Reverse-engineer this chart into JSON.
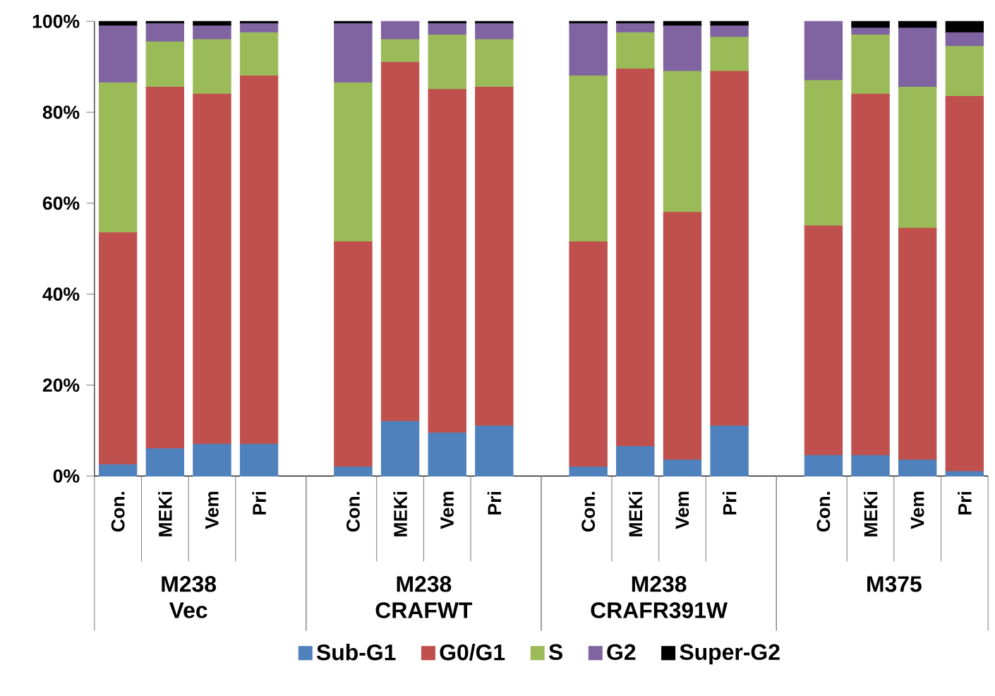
{
  "chart_data": {
    "type": "bar",
    "stacked": true,
    "legend": "bottom",
    "grid": false,
    "categories": [
      "Con.",
      "MEKi",
      "Vem",
      "Pri",
      null,
      "Con.",
      "MEKi",
      "Vem",
      "Pri",
      null,
      "Con.",
      "MEKi",
      "Vem",
      "Pri",
      null,
      "Con.",
      "MEKi",
      "Vem",
      "Pri"
    ],
    "ylim": [
      0,
      100
    ],
    "yticks": [
      {
        "value": 0,
        "label": "0%"
      },
      {
        "value": 20,
        "label": "20%"
      },
      {
        "value": 40,
        "label": "40%"
      },
      {
        "value": 60,
        "label": "60%"
      },
      {
        "value": 80,
        "label": "80%"
      },
      {
        "value": 100,
        "label": "100%"
      }
    ],
    "annotations": [
      "M238",
      "Vec",
      "M238",
      "CRAFWT",
      "M238",
      "CRAFR391W",
      "M375"
    ],
    "series": [
      {
        "name": "Sub-G1",
        "color": "#4f81bd",
        "values": [
          2.5,
          6,
          7,
          7,
          null,
          2,
          12,
          9.5,
          11,
          null,
          2,
          6.5,
          3.5,
          11,
          null,
          4.5,
          4.5,
          3.5,
          1
        ]
      },
      {
        "name": "G0/G1",
        "color": "#c0504d",
        "values": [
          51,
          79.5,
          77,
          81,
          null,
          49.5,
          79,
          75.5,
          74.5,
          null,
          49.5,
          83,
          54.5,
          78,
          null,
          50.5,
          79.5,
          51,
          82.5
        ]
      },
      {
        "name": "S",
        "color": "#9bbb59",
        "values": [
          33,
          10,
          12,
          9.5,
          null,
          35,
          5,
          12,
          10.5,
          null,
          36.5,
          8,
          31,
          7.5,
          null,
          32,
          13,
          31,
          11
        ]
      },
      {
        "name": "G2",
        "color": "#8064a2",
        "values": [
          12.5,
          4,
          3,
          2,
          null,
          13,
          4,
          2.5,
          3.5,
          null,
          11.5,
          2,
          10,
          2.5,
          null,
          13,
          1.5,
          13,
          3
        ]
      },
      {
        "name": "Super-G2",
        "color": "#000000",
        "values": [
          1,
          0.5,
          1,
          0.5,
          null,
          0.5,
          0,
          0.5,
          0.5,
          null,
          0.5,
          0.5,
          1,
          1,
          null,
          0,
          1.5,
          1.5,
          2.5
        ]
      }
    ]
  }
}
